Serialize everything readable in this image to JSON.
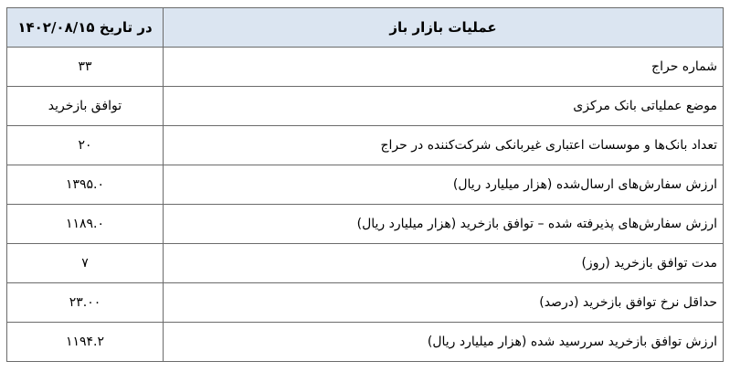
{
  "header": {
    "operations": "عملیات بازار باز",
    "date": "در تاریخ ۱۴۰۲/۰۸/۱۵"
  },
  "rows": [
    {
      "label": "شماره حراج",
      "value": "۳۳"
    },
    {
      "label": "موضع عملیاتی بانک مرکزی",
      "value": "توافق بازخرید"
    },
    {
      "label": "تعداد بانک‌ها و موسسات اعتباری غیربانکی شرکت‌کننده در حراج",
      "value": "۲۰"
    },
    {
      "label": "ارزش سفارش‌های ارسال‌شده (هزار میلیارد ریال)",
      "value": "۱۳۹۵.۰"
    },
    {
      "label": "ارزش سفارش‌های پذیرفته شده – توافق بازخرید (هزار میلیارد ریال)",
      "value": "۱۱۸۹.۰"
    },
    {
      "label": "مدت توافق بازخرید (روز)",
      "value": "۷"
    },
    {
      "label": "حداقل نرخ توافق بازخرید (درصد)",
      "value": "۲۳.۰۰"
    },
    {
      "label": "ارزش توافق بازخرید سررسید شده (هزار میلیارد ریال)",
      "value": "۱۱۹۴.۲"
    }
  ],
  "colors": {
    "header_bg": "#dbe5f1",
    "border": "#6b6b6b"
  }
}
